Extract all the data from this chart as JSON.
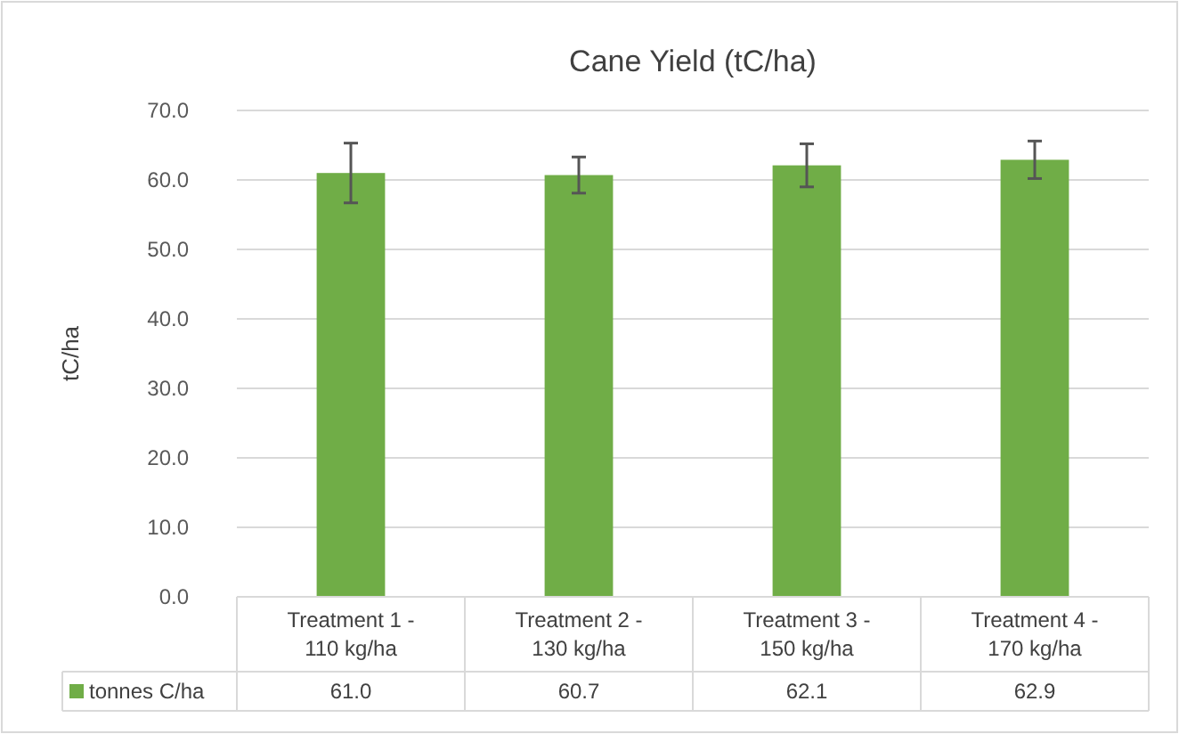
{
  "chart_data": {
    "type": "bar",
    "title": "Cane Yield (tC/ha)",
    "ylabel": "tC/ha",
    "categories": [
      "Treatment 1 - 110 kg/ha",
      "Treatment 2 - 130 kg/ha",
      "Treatment 3 - 150 kg/ha",
      "Treatment 4 - 170 kg/ha"
    ],
    "series": [
      {
        "name": "tonnes C/ha",
        "color": "#70ad47",
        "values": [
          61.0,
          60.7,
          62.1,
          62.9
        ],
        "errors": [
          4.3,
          2.6,
          3.1,
          2.7
        ],
        "value_labels": [
          "61.0",
          "60.7",
          "62.1",
          "62.9"
        ]
      }
    ],
    "ylim": [
      0,
      70
    ],
    "yticks": [
      {
        "value": 0,
        "label": "0.0"
      },
      {
        "value": 10,
        "label": "10.0"
      },
      {
        "value": 20,
        "label": "20.0"
      },
      {
        "value": 30,
        "label": "30.0"
      },
      {
        "value": 40,
        "label": "40.0"
      },
      {
        "value": 50,
        "label": "50.0"
      },
      {
        "value": 60,
        "label": "60.0"
      },
      {
        "value": 70,
        "label": "70.0"
      }
    ],
    "grid": "y"
  }
}
